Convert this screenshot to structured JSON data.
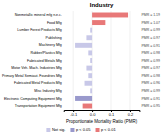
{
  "chart_data": {
    "type": "bar",
    "orientation": "horizontal",
    "title": "Industry",
    "xlabel": "Proportionate Mortality Ratio (PMR)",
    "categories": [
      "Nonmetallic mineral mfg n.e.c.",
      "Food Mfg",
      "Lumber Forest Products Mfg",
      "Publishing",
      "Machinery Mfg",
      "Rubber/Plastics Mfg",
      "Fabricated Metals Mfg",
      "Motor Veh. Mach. Industries Mfg",
      "Primary Metal Semiaut. Foundries Mfg",
      "Fabricated Metal Products Mfg",
      "Misc Industry Mfg",
      "Electronic Computing Equipment Mfg",
      "Transportation Equipment Mfg"
    ],
    "series": [
      {
        "name": "Not sig.",
        "color": "#c8c8e8",
        "values": [
          null,
          null,
          -0.01,
          -0.03,
          -0.09,
          -0.02,
          -0.01,
          -0.03,
          -0.02,
          -0.04,
          -0.01,
          null,
          null
        ]
      },
      {
        "name": "p < 0.05",
        "color": "#9999cc",
        "values": [
          null,
          null,
          null,
          null,
          null,
          null,
          null,
          null,
          null,
          null,
          null,
          -0.09,
          null
        ]
      },
      {
        "name": "p < 0.01",
        "color": "#e87878",
        "values": [
          0.19,
          0.07,
          null,
          null,
          null,
          null,
          null,
          null,
          null,
          null,
          null,
          null,
          -0.05
        ]
      }
    ],
    "annotations": [
      "PMR = 1.19",
      "PMR = 1.07",
      "PMR = 0.99",
      "PMR = 0.97",
      "PMR = 0.91",
      "PMR = 0.98",
      "PMR = 0.99",
      "PMR = 0.97",
      "PMR = 0.98",
      "PMR = 0.96",
      "PMR = 0.99",
      "PMR = 0.91",
      "PMR = 0.95"
    ],
    "xlim": [
      -0.15,
      0.25
    ],
    "xticks": [
      -0.1,
      {
        "value": 0,
        "label": "0.0"
      },
      0.1,
      0.2
    ],
    "grid": true,
    "legend": "bottom"
  }
}
